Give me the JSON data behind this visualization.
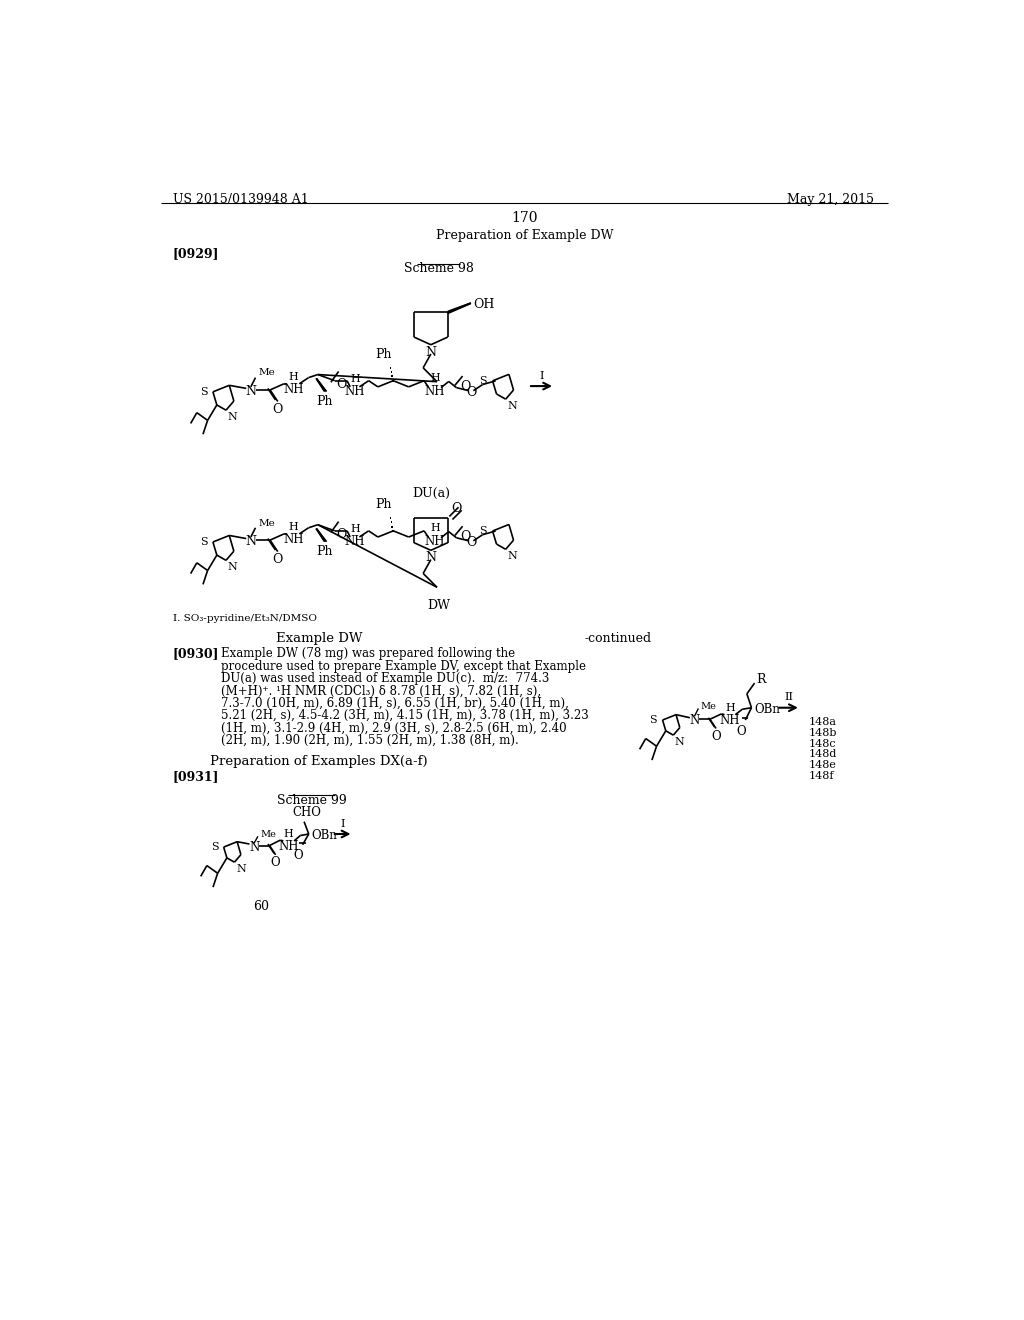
{
  "bg_color": "#ffffff",
  "header_left": "US 2015/0139948 A1",
  "header_right": "May 21, 2015",
  "page_number": "170",
  "section_title": "Preparation of Example DW",
  "tag_929": "[0929]",
  "scheme_98": "Scheme 98",
  "dua_label": "DU(a)",
  "dw_label": "DW",
  "footnote": "I. SO₃-pyridine/Et₃N/DMSO",
  "example_dw": "Example DW",
  "continued": "-continued",
  "tag_930": "[0930]",
  "para_930_line1": "Example DW (78 mg) was prepared following the",
  "para_930_line2": "procedure used to prepare Example DV, except that Example",
  "para_930_line3": "DU(a) was used instead of Example DU(c).  m/z:  774.3",
  "para_930_line4": "(M+H)⁺. ¹H NMR (CDCl₃) δ 8.78 (1H, s), 7.82 (1H, s),",
  "para_930_line5": "7.3-7.0 (10H, m), 6.89 (1H, s), 6.55 (1H, br), 5.40 (1H, m),",
  "para_930_line6": "5.21 (2H, s), 4.5-4.2 (3H, m), 4.15 (1H, m), 3.78 (1H, m), 3.23",
  "para_930_line7": "(1H, m), 3.1-2.9 (4H, m), 2.9 (3H, s), 2.8-2.5 (6H, m), 2.40",
  "para_930_line8": "(2H, m), 1.90 (2H, m), 1.55 (2H, m), 1.38 (8H, m).",
  "prep_dx": "Preparation of Examples DX(a-f)",
  "tag_931": "[0931]",
  "scheme_99": "Scheme 99",
  "label_60": "60",
  "labels_148": [
    "148a",
    "148b",
    "148c",
    "148d",
    "148e",
    "148f"
  ],
  "arrow_i": "I",
  "arrow_ii": "II"
}
